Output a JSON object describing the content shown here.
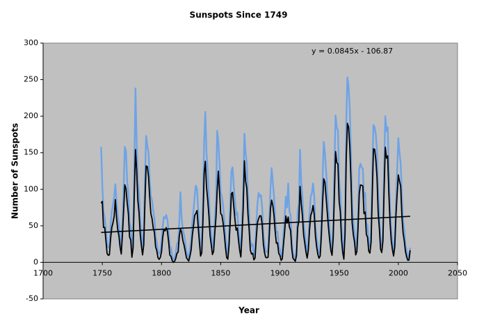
{
  "chart_data": {
    "type": "line",
    "title": "Sunspots Since 1749",
    "x_label": "Year",
    "y_label": "Number of Sunspots",
    "annotation": "y = 0.0845x - 106.87",
    "xlim": [
      1700,
      2050
    ],
    "xticks": [
      1700,
      1750,
      1800,
      1850,
      1900,
      1950,
      2000,
      2050
    ],
    "ylim": [
      -50,
      300
    ],
    "yticks": [
      -50,
      0,
      50,
      100,
      150,
      200,
      250,
      300
    ],
    "background": "#c0c0c0",
    "x": [
      1749,
      1750,
      1751,
      1752,
      1753,
      1754,
      1755,
      1756,
      1757,
      1758,
      1759,
      1760,
      1761,
      1762,
      1763,
      1764,
      1765,
      1766,
      1767,
      1768,
      1769,
      1770,
      1771,
      1772,
      1773,
      1774,
      1775,
      1776,
      1777,
      1778,
      1779,
      1780,
      1781,
      1782,
      1783,
      1784,
      1785,
      1786,
      1787,
      1788,
      1789,
      1790,
      1791,
      1792,
      1793,
      1794,
      1795,
      1796,
      1797,
      1798,
      1799,
      1800,
      1801,
      1802,
      1803,
      1804,
      1805,
      1806,
      1807,
      1808,
      1809,
      1810,
      1811,
      1812,
      1813,
      1814,
      1815,
      1816,
      1817,
      1818,
      1819,
      1820,
      1821,
      1822,
      1823,
      1824,
      1825,
      1826,
      1827,
      1828,
      1829,
      1830,
      1831,
      1832,
      1833,
      1834,
      1835,
      1836,
      1837,
      1838,
      1839,
      1840,
      1841,
      1842,
      1843,
      1844,
      1845,
      1846,
      1847,
      1848,
      1849,
      1850,
      1851,
      1852,
      1853,
      1854,
      1855,
      1856,
      1857,
      1858,
      1859,
      1860,
      1861,
      1862,
      1863,
      1864,
      1865,
      1866,
      1867,
      1868,
      1869,
      1870,
      1871,
      1872,
      1873,
      1874,
      1875,
      1876,
      1877,
      1878,
      1879,
      1880,
      1881,
      1882,
      1883,
      1884,
      1885,
      1886,
      1887,
      1888,
      1889,
      1890,
      1891,
      1892,
      1893,
      1894,
      1895,
      1896,
      1897,
      1898,
      1899,
      1900,
      1901,
      1902,
      1903,
      1904,
      1905,
      1906,
      1907,
      1908,
      1909,
      1910,
      1911,
      1912,
      1913,
      1914,
      1915,
      1916,
      1917,
      1918,
      1919,
      1920,
      1921,
      1922,
      1923,
      1924,
      1925,
      1926,
      1927,
      1928,
      1929,
      1930,
      1931,
      1932,
      1933,
      1934,
      1935,
      1936,
      1937,
      1938,
      1939,
      1940,
      1941,
      1942,
      1943,
      1944,
      1945,
      1946,
      1947,
      1948,
      1949,
      1950,
      1951,
      1952,
      1953,
      1954,
      1955,
      1956,
      1957,
      1958,
      1959,
      1960,
      1961,
      1962,
      1963,
      1964,
      1965,
      1966,
      1967,
      1968,
      1969,
      1970,
      1971,
      1972,
      1973,
      1974,
      1975,
      1976,
      1977,
      1978,
      1979,
      1980,
      1981,
      1982,
      1983,
      1984,
      1985,
      1986,
      1987,
      1988,
      1989,
      1990,
      1991,
      1992,
      1993,
      1994,
      1995,
      1996,
      1997,
      1998,
      1999,
      2000,
      2001,
      2002,
      2003,
      2004,
      2005,
      2006,
      2007,
      2008,
      2009,
      2010
    ],
    "series": [
      {
        "color": "#6ea3e6",
        "values": [
          158,
          105,
          70,
          62,
          45,
          25,
          20,
          22,
          50,
          70,
          78,
          90,
          107,
          82,
          65,
          52,
          35,
          22,
          55,
          100,
          158,
          152,
          110,
          95,
          55,
          48,
          18,
          35,
          130,
          238,
          165,
          110,
          95,
          58,
          38,
          22,
          40,
          115,
          173,
          160,
          150,
          115,
          90,
          85,
          70,
          60,
          35,
          28,
          15,
          12,
          15,
          28,
          50,
          62,
          60,
          65,
          58,
          42,
          22,
          20,
          8,
          4,
          6,
          12,
          25,
          28,
          55,
          96,
          60,
          45,
          38,
          28,
          15,
          10,
          6,
          18,
          30,
          55,
          70,
          90,
          105,
          100,
          70,
          42,
          18,
          25,
          85,
          165,
          206,
          150,
          125,
          90,
          55,
          38,
          20,
          28,
          58,
          85,
          180,
          165,
          135,
          95,
          90,
          78,
          58,
          35,
          15,
          12,
          38,
          80,
          125,
          130,
          105,
          85,
          65,
          68,
          45,
          28,
          15,
          55,
          100,
          176,
          150,
          135,
          95,
          65,
          30,
          22,
          25,
          10,
          14,
          50,
          80,
          95,
          90,
          92,
          75,
          40,
          25,
          15,
          14,
          16,
          55,
          100,
          129,
          110,
          90,
          60,
          40,
          42,
          22,
          18,
          8,
          12,
          40,
          62,
          90,
          75,
          108,
          70,
          65,
          30,
          12,
          8,
          5,
          20,
          70,
          80,
          154,
          110,
          90,
          55,
          40,
          25,
          12,
          28,
          65,
          90,
          95,
          108,
          90,
          50,
          35,
          20,
          12,
          16,
          55,
          110,
          165,
          150,
          125,
          95,
          70,
          45,
          28,
          18,
          50,
          130,
          201,
          185,
          180,
          115,
          95,
          48,
          25,
          10,
          58,
          190,
          253,
          240,
          210,
          150,
          78,
          55,
          42,
          18,
          25,
          68,
          128,
          135,
          130,
          128,
          90,
          95,
          55,
          50,
          25,
          22,
          42,
          125,
          188,
          185,
          175,
          150,
          95,
          65,
          28,
          22,
          42,
          130,
          200,
          180,
          185,
          125,
          75,
          45,
          28,
          15,
          32,
          85,
          125,
          170,
          150,
          135,
          90,
          58,
          45,
          25,
          15,
          6,
          8,
          20
        ]
      },
      {
        "color": "#000000",
        "values": [
          80.9,
          83.4,
          47.7,
          47.8,
          30.7,
          12.2,
          9.6,
          10.2,
          32.4,
          47.6,
          54.0,
          62.9,
          85.9,
          61.2,
          45.1,
          36.4,
          20.9,
          11.4,
          37.8,
          69.8,
          106.1,
          100.8,
          81.6,
          66.5,
          34.8,
          30.6,
          7.0,
          19.8,
          92.5,
          154.4,
          125.9,
          84.8,
          68.1,
          38.5,
          22.8,
          10.2,
          24.1,
          82.9,
          132.0,
          130.9,
          118.1,
          89.9,
          66.6,
          60.0,
          46.9,
          41.0,
          21.3,
          16.0,
          6.4,
          4.1,
          6.8,
          14.5,
          34.0,
          45.0,
          43.1,
          47.5,
          42.2,
          28.1,
          10.1,
          8.1,
          2.5,
          0.0,
          1.4,
          5.0,
          12.2,
          13.9,
          35.4,
          45.8,
          41.1,
          30.1,
          23.9,
          15.6,
          6.6,
          4.0,
          1.8,
          8.5,
          16.6,
          36.3,
          49.6,
          64.2,
          67.0,
          70.9,
          47.8,
          27.5,
          8.5,
          13.2,
          56.9,
          121.5,
          138.3,
          103.2,
          85.7,
          64.6,
          36.7,
          24.2,
          10.7,
          15.0,
          40.1,
          61.5,
          98.5,
          124.7,
          96.3,
          66.6,
          64.5,
          54.1,
          39.0,
          20.6,
          6.7,
          4.3,
          22.7,
          54.8,
          93.8,
          95.8,
          77.2,
          59.1,
          44.0,
          47.0,
          30.5,
          16.3,
          7.3,
          37.6,
          74.0,
          139.0,
          111.2,
          101.6,
          66.2,
          44.7,
          17.0,
          11.3,
          12.4,
          3.4,
          6.0,
          32.3,
          54.3,
          59.7,
          63.7,
          63.5,
          52.2,
          25.4,
          13.1,
          6.8,
          6.3,
          7.1,
          35.6,
          73.0,
          85.1,
          78.0,
          64.0,
          41.8,
          26.2,
          26.7,
          12.1,
          9.5,
          2.7,
          5.0,
          24.4,
          42.0,
          63.5,
          53.8,
          62.0,
          48.5,
          43.9,
          18.6,
          5.7,
          3.6,
          1.4,
          9.6,
          47.4,
          57.1,
          103.9,
          80.6,
          63.6,
          37.6,
          26.1,
          14.2,
          5.8,
          16.7,
          44.3,
          63.9,
          69.0,
          77.8,
          64.9,
          35.7,
          21.2,
          11.1,
          5.7,
          8.7,
          36.1,
          79.7,
          114.4,
          109.6,
          88.8,
          67.8,
          47.5,
          30.6,
          16.3,
          9.6,
          33.2,
          92.6,
          151.6,
          136.3,
          134.7,
          83.9,
          69.4,
          31.5,
          13.9,
          4.4,
          38.0,
          141.7,
          190.2,
          184.8,
          159.0,
          112.3,
          53.9,
          37.6,
          27.9,
          10.2,
          15.1,
          47.0,
          93.8,
          105.9,
          105.5,
          104.5,
          66.6,
          68.9,
          38.0,
          34.5,
          15.5,
          12.6,
          27.5,
          92.5,
          155.4,
          154.6,
          140.4,
          115.9,
          66.6,
          45.9,
          17.9,
          13.4,
          29.4,
          100.2,
          157.6,
          142.6,
          145.7,
          94.3,
          54.6,
          29.9,
          17.5,
          8.6,
          21.5,
          64.3,
          93.3,
          119.6,
          111.0,
          104.0,
          63.7,
          40.4,
          29.8,
          15.2,
          7.5,
          2.9,
          3.1,
          16.5
        ]
      },
      {
        "color": "#000000",
        "x": [
          1749,
          2010
        ],
        "values": [
          40.92,
          62.98
        ]
      }
    ]
  }
}
